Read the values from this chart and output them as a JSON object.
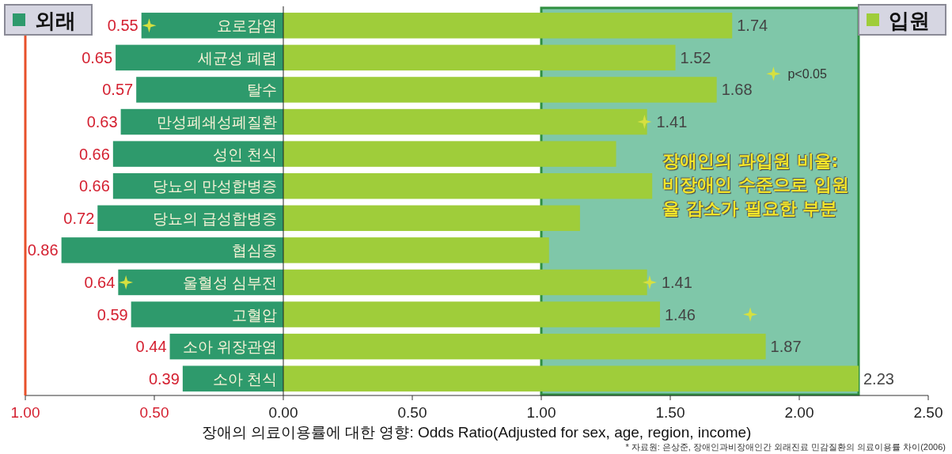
{
  "chart_data": [
    {
      "type": "bar",
      "orientation": "horizontal",
      "categories": [
        "요로감염",
        "세균성 폐렴",
        "탈수",
        "만성폐쇄성폐질환",
        "성인 천식",
        "당뇨의 만성합병증",
        "당뇨의 급성합병증",
        "협심증",
        "울혈성 심부전",
        "고혈압",
        "소아 위장관염",
        "소아 천식"
      ],
      "series": [
        {
          "name": "외래",
          "color": "#2e9a6c",
          "values": [
            0.55,
            0.65,
            0.57,
            0.63,
            0.66,
            0.66,
            0.72,
            0.86,
            0.64,
            0.59,
            0.44,
            0.39
          ],
          "value_labels": [
            "0.55",
            "0.65",
            "0.57",
            "0.63",
            "0.66",
            "0.66",
            "0.72",
            "0.86",
            "0.64",
            "0.59",
            "0.44",
            "0.39"
          ]
        },
        {
          "type": "scatter",
          "marker": "star",
          "color": "#d6e040",
          "values": [
            0.52,
            null,
            null,
            null,
            null,
            null,
            null,
            null,
            0.61,
            null,
            null,
            null
          ]
        }
      ],
      "xlim": [
        1,
        0
      ],
      "xticks": [
        {
          "value": 1,
          "label": "1.00"
        },
        {
          "value": 0.5,
          "label": "0.50"
        }
      ]
    },
    {
      "type": "bar",
      "orientation": "horizontal",
      "xlabel": "장애의 의료이용률에 대한 영향: Odds Ratio(Adjusted for sex, age, region, income)",
      "categories": [
        null,
        null,
        null,
        null,
        null,
        null,
        null,
        null,
        null,
        null,
        null,
        null
      ],
      "tick_labels": "x",
      "series": [
        {
          "name": "입원",
          "color": "#9fcd3a",
          "values": [
            1.74,
            1.52,
            1.68,
            1.41,
            1.29,
            1.43,
            1.15,
            1.03,
            1.41,
            1.46,
            1.87,
            2.23
          ],
          "value_labels": [
            "1.74",
            "1.52",
            "1.68",
            "1.41",
            null,
            null,
            null,
            null,
            "1.41",
            "1.46",
            "1.87",
            "2.23"
          ]
        },
        {
          "name": "p<0.05",
          "type": "scatter",
          "marker": "star",
          "color": "#d6e040",
          "values": [
            null,
            null,
            null,
            1.4,
            null,
            null,
            null,
            null,
            1.42,
            1.81,
            null,
            null
          ]
        }
      ],
      "xlim": [
        0,
        2.5
      ],
      "xticks": [
        {
          "value": 0,
          "label": "0.00"
        },
        {
          "value": 0.5,
          "label": "0.50"
        },
        {
          "value": 1,
          "label": "1.00"
        },
        {
          "value": 1.5,
          "label": "1.50"
        },
        {
          "value": 2,
          "label": "2.00"
        },
        {
          "value": 2.5,
          "label": "2.50"
        }
      ],
      "bands": [
        {
          "axis": "x",
          "from": 1,
          "to": 2.23,
          "label": "장애인의 과입원 비율: 비장애인 수준으로 입원율 감소가 필요한 부분",
          "color": "#7fc7a9"
        }
      ],
      "legend": "top right",
      "annotations": [
        "* 자료원: 은상준, 장애인과비장애인간 외래진료 민감질환의 의료이용률 차이(2006)"
      ]
    }
  ]
}
